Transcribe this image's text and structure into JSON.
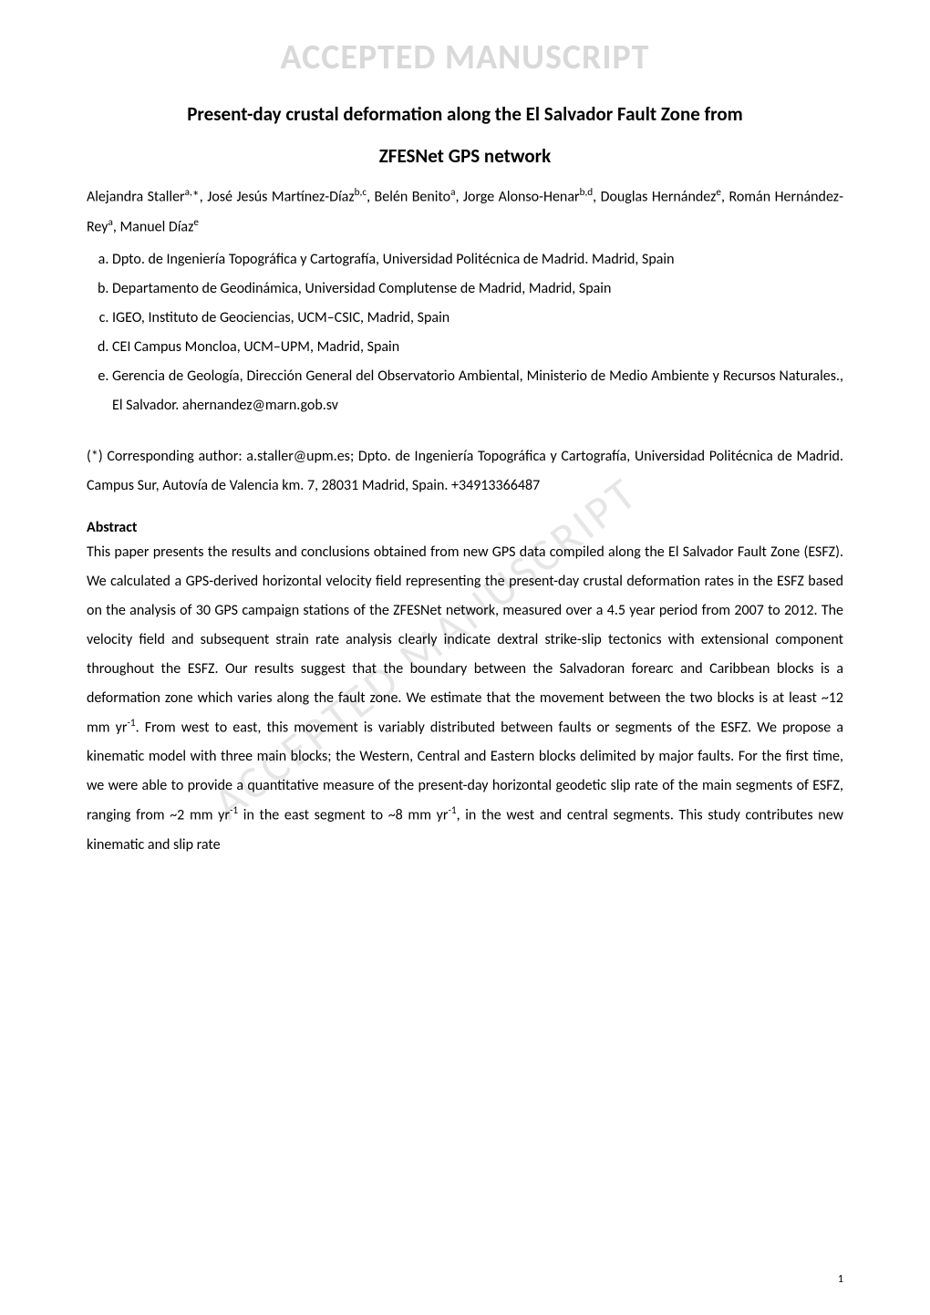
{
  "watermark": "ACCEPTED MANUSCRIPT",
  "diagonal_watermark": "ACCEPTED MANUSCRIPT",
  "title_line1": "Present-day crustal deformation along the El Salvador Fault Zone from",
  "title_line2": "ZFESNet GPS network",
  "authors_html": "Alejandra Staller<sup>a,</sup>*, José Jesús Martínez-Díaz<sup>b,c</sup>, Belén Benito<sup>a</sup>, Jorge Alonso-Henar<sup>b,d</sup>, Douglas Hernández<sup>e</sup>, Román Hernández-Rey<sup>a</sup>, Manuel Díaz<sup>e</sup>",
  "affiliations": [
    "Dpto. de Ingeniería Topográfica y Cartografía, Universidad Politécnica de Madrid. Madrid, Spain",
    "Departamento de Geodinámica, Universidad Complutense de Madrid, Madrid, Spain",
    "IGEO, Instituto de Geociencias, UCM–CSIC, Madrid, Spain",
    "CEI Campus Moncloa, UCM–UPM, Madrid, Spain",
    "Gerencia de Geología, Dirección General del Observatorio Ambiental, Ministerio de Medio Ambiente y Recursos Naturales., El Salvador. ahernandez@marn.gob.sv"
  ],
  "corresponding": "(*) Corresponding author: a.staller@upm.es; Dpto. de Ingeniería Topográfica y Cartografía, Universidad Politécnica de Madrid. Campus Sur, Autovía de Valencia km. 7, 28031 Madrid, Spain. +34913366487",
  "abstract_heading": "Abstract",
  "abstract_body_html": "This paper presents the results and conclusions obtained from new GPS data compiled along the El Salvador Fault Zone (ESFZ). We calculated a GPS-derived horizontal velocity field representing the present-day crustal deformation rates in the ESFZ based on the analysis of 30 GPS campaign stations of the ZFESNet network, measured over a 4.5 year period from 2007 to 2012. The velocity field and subsequent strain rate analysis clearly indicate dextral strike-slip tectonics with extensional component throughout the ESFZ. Our results suggest that the boundary between the Salvadoran forearc and Caribbean blocks is a deformation zone which varies along the fault zone. We estimate that the movement between the two blocks is at least ~12 mm yr<sup>-1</sup>. From west to east, this movement is variably distributed between faults or segments of the ESFZ. We propose a kinematic model with three main blocks; the Western, Central and Eastern blocks delimited by major faults. For the first time, we were able to provide a quantitative measure of the present-day horizontal geodetic slip rate of the main segments of ESFZ, ranging from ~2 mm yr<sup>-1</sup> in the east segment to ~8 mm yr<sup>-1</sup>, in the west and central segments. This study contributes new kinematic and slip rate",
  "page_number": "1"
}
